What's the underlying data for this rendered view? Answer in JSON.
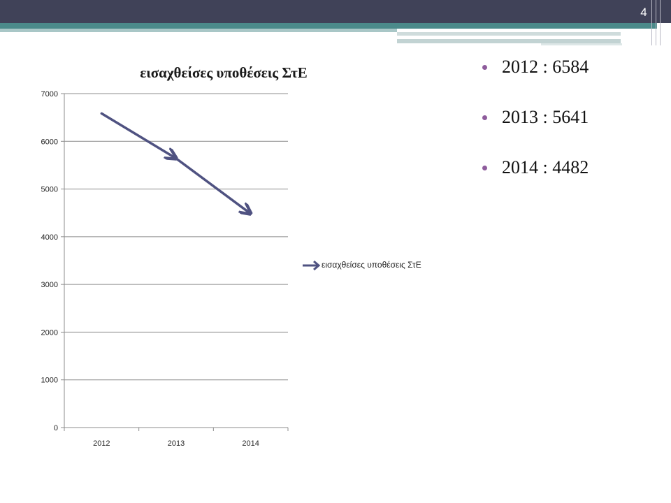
{
  "slide": {
    "number": "4"
  },
  "colors": {
    "series": "#4f5281",
    "header": "#404258",
    "accent": "#4b8a8a",
    "bullet": "#8e5c9c"
  },
  "chart_data": {
    "type": "line",
    "title": "εισαχθείσες υποθέσεις ΣτΕ",
    "categories": [
      "2012",
      "2013",
      "2014"
    ],
    "series": [
      {
        "name": "εισαχθείσες υποθέσεις ΣτΕ",
        "values": [
          6584,
          5641,
          4482
        ]
      }
    ],
    "xlabel": "",
    "ylabel": "",
    "ylim": [
      0,
      7000
    ],
    "yticks": [
      0,
      1000,
      2000,
      3000,
      4000,
      5000,
      6000,
      7000
    ],
    "grid": true,
    "legend": "right",
    "marker": "arrow"
  },
  "bullets": [
    {
      "text": "2012 : 6584"
    },
    {
      "text": "2013 : 5641"
    },
    {
      "text": "2014 : 4482"
    }
  ]
}
